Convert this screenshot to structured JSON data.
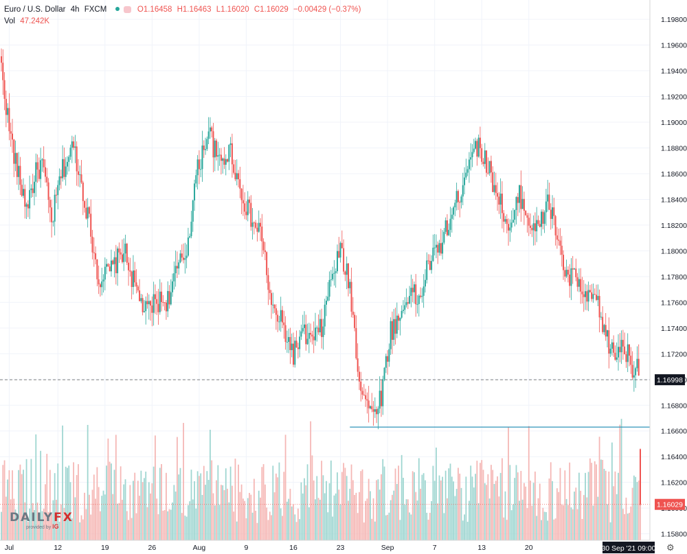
{
  "legend": {
    "symbol": "Euro / U.S. Dollar",
    "interval": "4h",
    "source": "FXCM",
    "open": "O1.16458",
    "high": "H1.16463",
    "low": "L1.16020",
    "close": "C1.16029",
    "change": "−0.00429 (−0.37%)",
    "volume_label": "Vol",
    "volume_value": "47.242K"
  },
  "logo": {
    "brand_a": "DAILY",
    "brand_b": "FX",
    "provided_by": "provided by",
    "ig": "IG"
  },
  "colors": {
    "up": "#26a69a",
    "down": "#ef5350",
    "up_vol": "#9fd6d1",
    "down_vol": "#f5b7b5",
    "support": "#2e94b8",
    "grid": "#f0f3fa"
  },
  "chart_data": {
    "type": "candlestick",
    "title": "Euro / U.S. Dollar",
    "interval": "4h",
    "ylim": [
      1.1575,
      1.1995
    ],
    "y_ticks": [
      "1.19800",
      "1.19600",
      "1.19400",
      "1.19200",
      "1.19000",
      "1.18800",
      "1.18600",
      "1.18400",
      "1.18200",
      "1.18000",
      "1.17800",
      "1.17600",
      "1.17400",
      "1.17200",
      "1.17000",
      "1.16800",
      "1.16600",
      "1.16400",
      "1.16200",
      "1.16000",
      "1.15800"
    ],
    "x_ticks": [
      "Jul",
      "12",
      "19",
      "26",
      "Aug",
      "9",
      "16",
      "23",
      "Sep",
      "7",
      "13",
      "20"
    ],
    "x_tick_bar_index": [
      5,
      36,
      66,
      96,
      126,
      156,
      186,
      216,
      246,
      276,
      306,
      336
    ],
    "bar_count": 408,
    "price_path": [
      [
        0,
        1.1942
      ],
      [
        5,
        1.1895
      ],
      [
        10,
        1.1862
      ],
      [
        16,
        1.1835
      ],
      [
        22,
        1.186
      ],
      [
        26,
        1.1868
      ],
      [
        32,
        1.1822
      ],
      [
        38,
        1.186
      ],
      [
        46,
        1.1882
      ],
      [
        55,
        1.1828
      ],
      [
        62,
        1.1778
      ],
      [
        70,
        1.1785
      ],
      [
        78,
        1.1801
      ],
      [
        85,
        1.1772
      ],
      [
        92,
        1.1752
      ],
      [
        98,
        1.176
      ],
      [
        106,
        1.1762
      ],
      [
        112,
        1.1785
      ],
      [
        118,
        1.18
      ],
      [
        124,
        1.1858
      ],
      [
        132,
        1.1895
      ],
      [
        138,
        1.1868
      ],
      [
        146,
        1.1878
      ],
      [
        152,
        1.1848
      ],
      [
        160,
        1.1822
      ],
      [
        166,
        1.1812
      ],
      [
        172,
        1.1755
      ],
      [
        178,
        1.1745
      ],
      [
        186,
        1.172
      ],
      [
        192,
        1.1735
      ],
      [
        198,
        1.173
      ],
      [
        204,
        1.174
      ],
      [
        210,
        1.1778
      ],
      [
        216,
        1.18
      ],
      [
        222,
        1.1772
      ],
      [
        228,
        1.17
      ],
      [
        236,
        1.1672
      ],
      [
        242,
        1.1688
      ],
      [
        248,
        1.1738
      ],
      [
        254,
        1.1748
      ],
      [
        260,
        1.177
      ],
      [
        266,
        1.176
      ],
      [
        272,
        1.179
      ],
      [
        278,
        1.18
      ],
      [
        284,
        1.1818
      ],
      [
        292,
        1.1845
      ],
      [
        300,
        1.1882
      ],
      [
        306,
        1.1878
      ],
      [
        312,
        1.1858
      ],
      [
        318,
        1.1838
      ],
      [
        324,
        1.1812
      ],
      [
        330,
        1.1845
      ],
      [
        336,
        1.1824
      ],
      [
        342,
        1.1815
      ],
      [
        348,
        1.184
      ],
      [
        354,
        1.1812
      ],
      [
        360,
        1.1778
      ],
      [
        366,
        1.178
      ],
      [
        372,
        1.176
      ],
      [
        378,
        1.1765
      ],
      [
        384,
        1.1738
      ],
      [
        390,
        1.1718
      ],
      [
        396,
        1.1728
      ],
      [
        402,
        1.171
      ],
      [
        406,
        1.1712
      ],
      [
        408,
        1.1716
      ]
    ],
    "last_close": 1.16029,
    "last_open": 1.16458,
    "last_high": 1.16463,
    "last_low": 1.1602,
    "support_level": 1.1663,
    "support_start_bar": 222,
    "dashed_price": 1.16998,
    "last_price_label": "1.16029",
    "dashed_price_label": "1.16998",
    "current_time_label": "30 Sep '21  09:00",
    "volume": {
      "label": "Vol",
      "last": "47.242K"
    }
  }
}
